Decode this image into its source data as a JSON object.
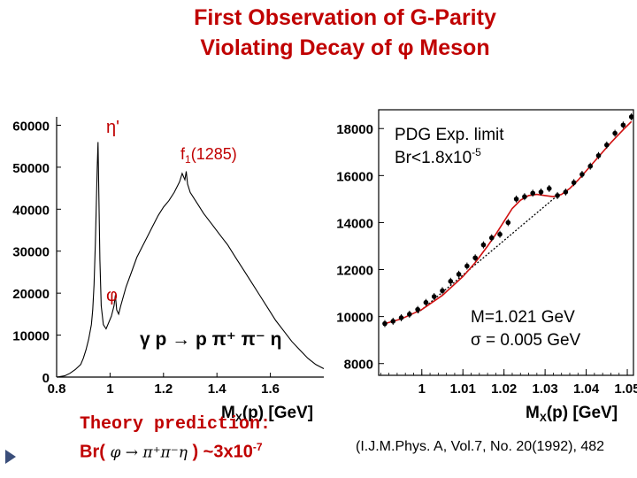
{
  "slide": {
    "title_line1": "First Observation of  G-Parity",
    "title_line2": "Violating  Decay of φ  Meson",
    "accent_color": "#c00000",
    "theory_label": "Theory prediction:",
    "br_prefix": "Br(",
    "br_decay": "φ → π⁺π⁻η",
    "br_suffix": ")  ~3x10",
    "br_exp": "-7",
    "citation": "(I.J.M.Phys. A, Vol.7, No. 20(1992), 482"
  },
  "chart_data": [
    {
      "type": "line",
      "name": "spectrum",
      "xlabel_main": "M",
      "xlabel_sub": "X",
      "xlabel_rest": "(p) [GeV]",
      "xlim": [
        0.8,
        1.8
      ],
      "ylim": [
        0,
        62000
      ],
      "xticks": [
        "0.8",
        "1",
        "1.2",
        "1.4",
        "1.6"
      ],
      "xtick_values": [
        0.8,
        1.0,
        1.2,
        1.4,
        1.6
      ],
      "yticks": [
        "0",
        "10000",
        "20000",
        "30000",
        "40000",
        "50000",
        "60000"
      ],
      "ytick_values": [
        0,
        10000,
        20000,
        30000,
        40000,
        50000,
        60000
      ],
      "annotations": {
        "eta_prime": "η'",
        "f1_main": "f",
        "f1_sub": "1",
        "f1_rest": "(1285)",
        "phi": "φ",
        "reaction": "γ p → p π⁺ π⁻ η"
      },
      "x": [
        0.8,
        0.83,
        0.85,
        0.87,
        0.89,
        0.9,
        0.91,
        0.92,
        0.93,
        0.935,
        0.94,
        0.945,
        0.952,
        0.955,
        0.957,
        0.962,
        0.967,
        0.975,
        0.985,
        0.995,
        1.005,
        1.015,
        1.02,
        1.025,
        1.032,
        1.04,
        1.06,
        1.08,
        1.1,
        1.12,
        1.14,
        1.16,
        1.18,
        1.2,
        1.22,
        1.24,
        1.26,
        1.27,
        1.28,
        1.285,
        1.29,
        1.3,
        1.31,
        1.33,
        1.35,
        1.38,
        1.41,
        1.44,
        1.47,
        1.5,
        1.53,
        1.56,
        1.59,
        1.62,
        1.65,
        1.68,
        1.71,
        1.74,
        1.77,
        1.8
      ],
      "values": [
        0,
        300,
        900,
        1800,
        3000,
        4500,
        6500,
        9000,
        12500,
        16000,
        22000,
        32000,
        50000,
        56000,
        48000,
        28000,
        17000,
        12500,
        11500,
        13000,
        14500,
        17000,
        19500,
        16000,
        15000,
        17000,
        21500,
        25000,
        28500,
        31000,
        33500,
        36000,
        38500,
        40500,
        42000,
        44000,
        46500,
        48500,
        47000,
        49000,
        46000,
        44000,
        43000,
        41000,
        39000,
        36500,
        34000,
        31500,
        28500,
        25500,
        22500,
        19500,
        16500,
        13500,
        11000,
        8500,
        6500,
        4500,
        3000,
        2000
      ],
      "peak_labels_x": [
        0.95,
        1.28,
        1.02
      ]
    },
    {
      "type": "scatter",
      "name": "zoom-fit",
      "xlabel_main": "M",
      "xlabel_sub": "X",
      "xlabel_rest": "(p) [GeV]",
      "xlim": [
        0.9895,
        1.0515
      ],
      "ylim": [
        7500,
        18800
      ],
      "xticks": [
        "1",
        "1.01",
        "1.02",
        "1.03",
        "1.04",
        "1.05"
      ],
      "xtick_values": [
        1.0,
        1.01,
        1.02,
        1.03,
        1.04,
        1.05
      ],
      "yticks": [
        "8000",
        "10000",
        "12000",
        "14000",
        "16000",
        "18000"
      ],
      "ytick_values": [
        8000,
        10000,
        12000,
        14000,
        16000,
        18000
      ],
      "x": [
        0.991,
        0.993,
        0.995,
        0.997,
        0.999,
        1.001,
        1.003,
        1.005,
        1.007,
        1.009,
        1.011,
        1.013,
        1.015,
        1.017,
        1.019,
        1.021,
        1.023,
        1.025,
        1.027,
        1.029,
        1.031,
        1.033,
        1.035,
        1.037,
        1.039,
        1.041,
        1.043,
        1.045,
        1.047,
        1.049,
        1.051
      ],
      "y": [
        9700,
        9800,
        9950,
        10100,
        10300,
        10600,
        10850,
        11100,
        11500,
        11800,
        12150,
        12500,
        13050,
        13350,
        13500,
        14000,
        15000,
        15100,
        15250,
        15300,
        15450,
        15150,
        15300,
        15700,
        16050,
        16400,
        16850,
        17300,
        17800,
        18150,
        18500
      ],
      "fit_x": [
        0.991,
        0.995,
        1.0,
        1.005,
        1.01,
        1.013,
        1.016,
        1.018,
        1.02,
        1.022,
        1.024,
        1.026,
        1.028,
        1.03,
        1.032,
        1.034,
        1.036,
        1.038,
        1.04,
        1.043,
        1.046,
        1.049,
        1.051
      ],
      "fit_y": [
        9700,
        9900,
        10300,
        10900,
        11700,
        12300,
        13000,
        13500,
        14050,
        14600,
        14950,
        15150,
        15200,
        15150,
        15100,
        15200,
        15450,
        15800,
        16200,
        16800,
        17400,
        17950,
        18300
      ],
      "bg_x": [
        0.999,
        1.033
      ],
      "bg_y": [
        10150,
        15150
      ],
      "annotations": {
        "pdg_line1": "PDG Exp. limit",
        "pdg_line2_main": "Br<1.8x10",
        "pdg_line2_exp": "-5",
        "mass": "M=1.021 GeV",
        "width": "σ = 0.005 GeV"
      }
    }
  ]
}
